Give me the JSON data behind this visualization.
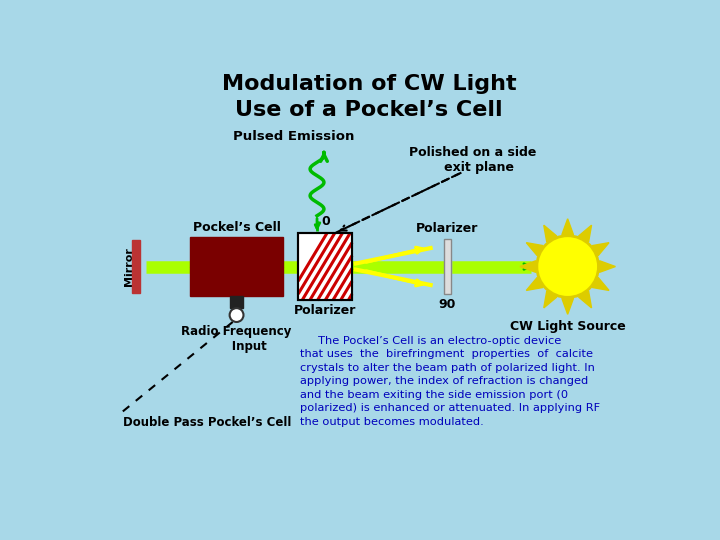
{
  "title": "Modulation of CW Light\nUse of a Pockel’s Cell",
  "bg_color": "#a8d8e8",
  "title_color": "#000000",
  "title_fontsize": 16,
  "body_text_line1": "     The Pockel’s Cell is an electro-optic device",
  "body_text_line2": "that uses  the  birefringment  properties  of  calcite",
  "body_text_line3": "crystals to alter the beam path of polarized light. In",
  "body_text_line4": "applying power, the index of refraction is changed",
  "body_text_line5": "and the beam exiting the side emission port (0",
  "body_text_line6": "polarized) is enhanced or attenuated. In applying RF",
  "body_text_line7": "the output becomes modulated.",
  "body_text_color": "#0000bb",
  "labels": {
    "pulsed_emission": "Pulsed Emission",
    "polished_on": "Polished on a side\n   exit plane",
    "pockels_cell": "Pockel’s Cell",
    "polarizer_top": "Polarizer",
    "polarizer_bottom": "Polarizer",
    "radio_freq": "Radio Frequency\n      Input",
    "mirror": "Mirror",
    "cw_light": "CW Light Source",
    "zero": "0",
    "ninety": "90",
    "double_pass": "Double Pass Pockel’s Cell"
  },
  "beam_color": "#aaff00",
  "arrow_green": "#00bb00",
  "mirror_color": "#bb3333",
  "pockel_box_color": "#7a0000",
  "crystal_lines_color": "#cc0000",
  "polarizer_color": "#dddddd",
  "sun_color": "#ffff00",
  "sun_ray_color": "#ddcc00",
  "text_font": "DejaVu Sans"
}
